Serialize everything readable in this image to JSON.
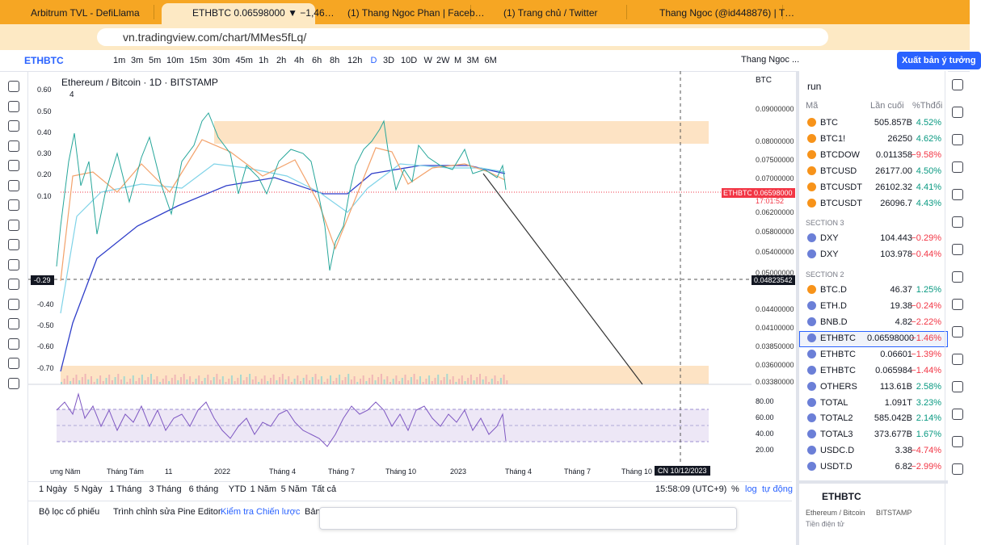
{
  "browser": {
    "tabs": [
      "Arbitrum TVL - DefiLlama",
      "ETHBTC 0.06598000 ▼ −1,46…",
      "(1) Thang Ngoc Phan | Faceb…",
      "(1) Trang chủ / Twitter",
      "Thang Ngoc (@id448876) | T…"
    ],
    "url": "vn.tradingview.com/chart/MMes5fLq/"
  },
  "toolbar": {
    "symbol": "ETHBTC",
    "intervals": [
      "1m",
      "3m",
      "5m",
      "10m",
      "15m",
      "30m",
      "45m",
      "1h",
      "2h",
      "4h",
      "6h",
      "8h",
      "12h",
      "D",
      "3D",
      "10D",
      "W",
      "2W",
      "M",
      "3M",
      "6M"
    ],
    "layout_name": "Thang Ngoc ...",
    "publish": "Xuất bản ý tưởng"
  },
  "chart": {
    "title": "Ethereum / Bitcoin · 1D · BITSTAMP",
    "indicator_count": "4",
    "currency": "BTC",
    "price_labels": [
      "0.09000000",
      "0.08000000",
      "0.07500000",
      "0.07000000",
      "0.06200000",
      "0.05800000",
      "0.05400000",
      "0.05000000",
      "0.04400000",
      "0.04100000",
      "0.03850000",
      "0.03600000",
      "0.03380000"
    ],
    "crosshair_price": "0.04823542",
    "last_tag": {
      "symbol": "ETHBTC",
      "price": "0.06598000",
      "countdown": "17:01:52"
    },
    "left_labels": [
      "0.60",
      "0.50",
      "0.40",
      "0.30",
      "0.20",
      "0.10",
      "-0.40",
      "-0.50",
      "-0.60",
      "-0.70"
    ],
    "crosshair_left": "-0.29",
    "rsi_labels": [
      "80.00",
      "60.00",
      "40.00",
      "20.00"
    ],
    "x_labels": [
      "ưng Năm",
      "Tháng Tám",
      "11",
      "2022",
      "Tháng 4",
      "Tháng 7",
      "Tháng 10",
      "2023",
      "Tháng 4",
      "Tháng 7",
      "Tháng 10"
    ],
    "crosshair_date": "CN 10/12/2023"
  },
  "ranges": {
    "buttons": [
      "1 Ngày",
      "5 Ngày",
      "1 Tháng",
      "3 Tháng",
      "6 tháng",
      "YTD",
      "1 Năm",
      "5 Năm",
      "Tất cả"
    ],
    "time": "15:58:09 (UTC+9)",
    "options": [
      "%",
      "log",
      "tự động"
    ]
  },
  "bottom_tabs": [
    "Bộ lọc cổ phiếu",
    "Trình chỉnh sửa Pine Editor",
    "Kiểm tra Chiến lược",
    "Bản"
  ],
  "watchlist": {
    "name": "run",
    "columns": [
      "Mã",
      "Lần cuối",
      "%Thđổi"
    ],
    "rows": [
      {
        "symbol": "BTC",
        "last": "505.857B",
        "change": "4.52%"
      },
      {
        "symbol": "BTC1!",
        "last": "26250",
        "change": "4.62%"
      },
      {
        "symbol": "BTCDOW",
        "last": "0.011358",
        "change": "−9.58%"
      },
      {
        "symbol": "BTCUSD",
        "last": "26177.00",
        "change": "4.50%"
      },
      {
        "symbol": "BTCUSDT",
        "last": "26102.32",
        "change": "4.41%"
      },
      {
        "symbol": "BTCUSDT",
        "last": "26096.7",
        "change": "4.43%"
      },
      {
        "section": "SECTION 3"
      },
      {
        "symbol": "DXY",
        "last": "104.443",
        "change": "−0.29%"
      },
      {
        "symbol": "DXY",
        "last": "103.978",
        "change": "−0.44%"
      },
      {
        "section": "SECTION 2"
      },
      {
        "symbol": "BTC.D",
        "last": "46.37",
        "change": "1.25%"
      },
      {
        "symbol": "ETH.D",
        "last": "19.38",
        "change": "−0.24%"
      },
      {
        "symbol": "BNB.D",
        "last": "4.82",
        "change": "−2.22%"
      },
      {
        "symbol": "ETHBTC",
        "last": "0.06598000",
        "change": "−1.46%"
      },
      {
        "symbol": "ETHBTC",
        "last": "0.06601",
        "change": "−1.39%"
      },
      {
        "symbol": "ETHBTC",
        "last": "0.065984",
        "change": "−1.44%"
      },
      {
        "symbol": "OTHERS",
        "last": "113.61B",
        "change": "2.58%"
      },
      {
        "symbol": "TOTAL",
        "last": "1.091T",
        "change": "3.23%"
      },
      {
        "symbol": "TOTAL2",
        "last": "585.042B",
        "change": "2.14%"
      },
      {
        "symbol": "TOTAL3",
        "last": "373.677B",
        "change": "1.67%"
      },
      {
        "symbol": "USDC.D",
        "last": "3.38",
        "change": "−4.74%"
      },
      {
        "symbol": "USDT.D",
        "last": "6.82",
        "change": "−2.99%"
      }
    ],
    "detail": {
      "symbol": "ETHBTC",
      "name": "Ethereum / Bitcoin",
      "exchange": "BITSTAMP",
      "kind": "Tiền điện tử"
    }
  }
}
